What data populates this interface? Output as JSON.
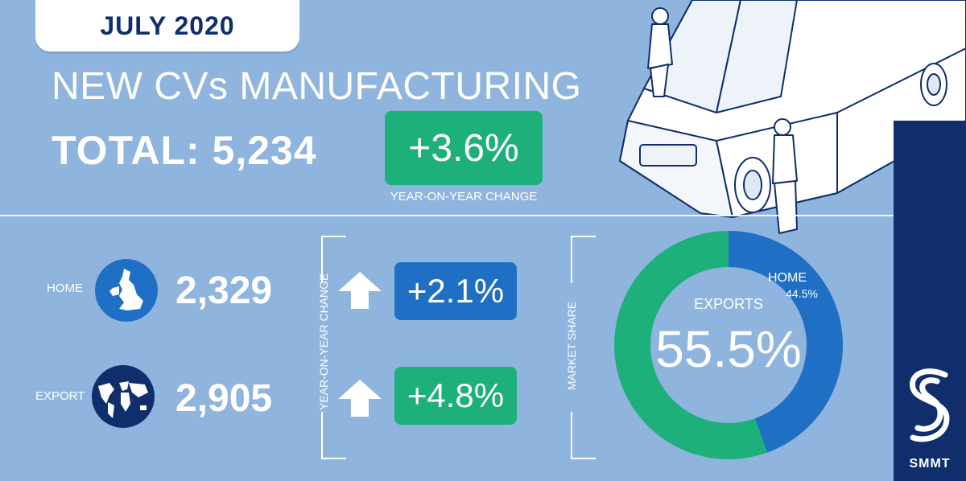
{
  "header": {
    "month": "JULY 2020",
    "title": "NEW CVs MANUFACTURING",
    "total_label": "TOTAL: 5,234",
    "total_change": "+3.6%",
    "change_caption": "YEAR-ON-YEAR CHANGE"
  },
  "rows": [
    {
      "label": "HOME",
      "value": "2,329",
      "change": "+2.1%",
      "icon": "uk-map-icon",
      "color": "#1f6fc4"
    },
    {
      "label": "EXPORT",
      "value": "2,905",
      "change": "+4.8%",
      "icon": "world-map-icon",
      "color": "#1db07b"
    }
  ],
  "yoy_vertical_label": "YEAR-ON-YEAR CHANGE",
  "market_share_label": "MARKET SHARE",
  "brand": {
    "name": "SMMT",
    "logo_icon": "smmt-logo-icon"
  },
  "colors": {
    "background": "#8fb4dd",
    "navy": "#0f2e6b",
    "blue": "#1f6fc4",
    "green": "#1db07b"
  },
  "chart_data": {
    "type": "pie",
    "categories": [
      "EXPORTS",
      "HOME"
    ],
    "values": [
      55.5,
      44.5
    ],
    "value_labels": [
      "55.5%",
      "44.5%"
    ],
    "colors": [
      "#1db07b",
      "#1f6fc4"
    ],
    "donut": true
  }
}
